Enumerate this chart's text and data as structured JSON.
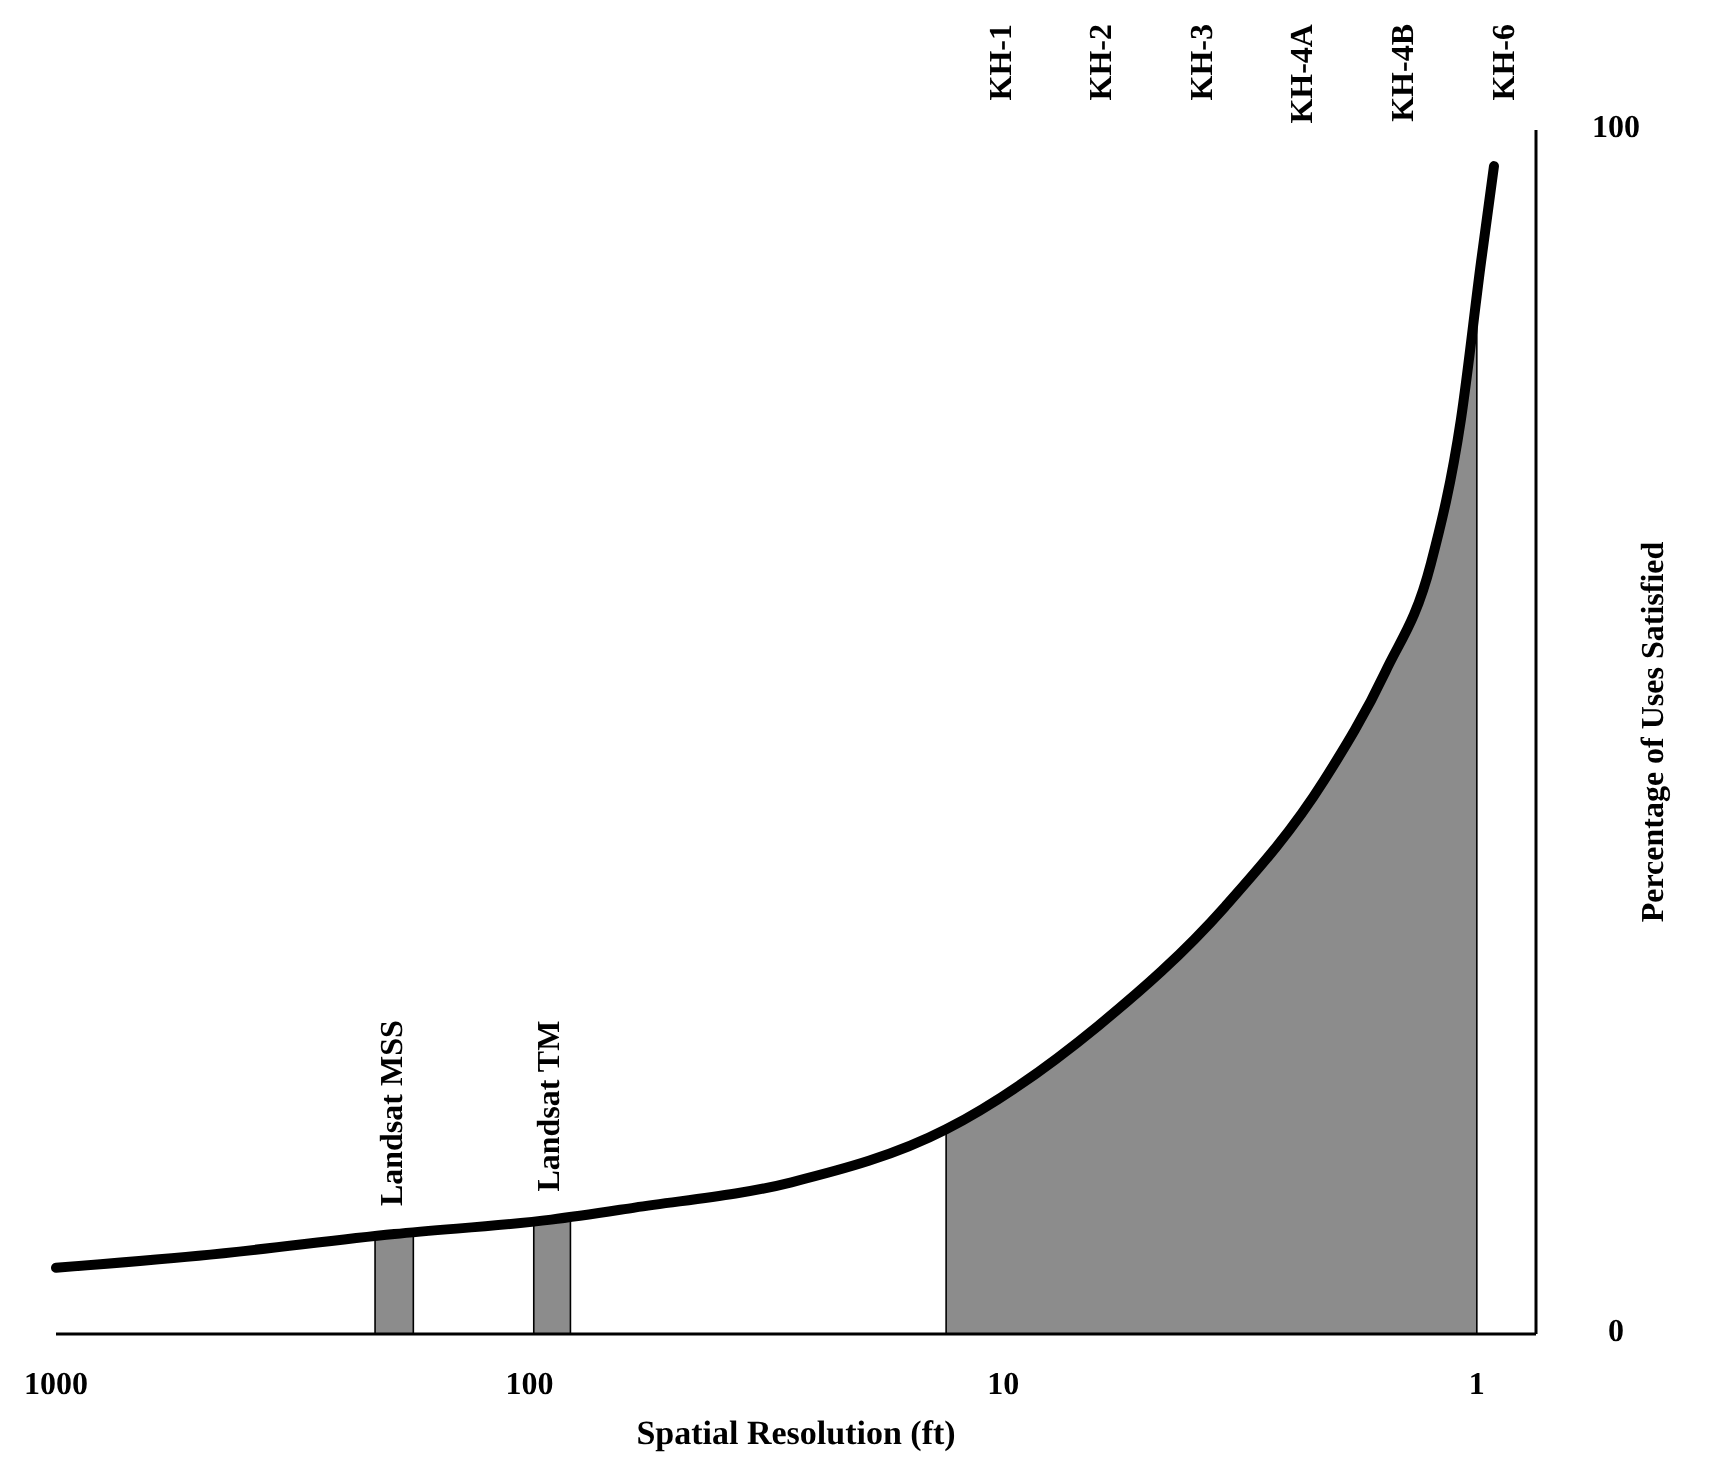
{
  "chart_data": {
    "type": "line",
    "xlabel": "Spatial Resolution (ft)",
    "ylabel": "Percentage of Uses Satisfied",
    "log": "x",
    "xlim": [
      1000,
      0.75
    ],
    "xticks": [
      1000,
      100,
      10,
      1
    ],
    "ylim": [
      0,
      100
    ],
    "yticks": [
      0,
      100
    ],
    "series": [
      {
        "color": "#000000",
        "x": [
          1000,
          500,
          193,
          90,
          60,
          28,
          13.2,
          6.3,
          3.4,
          2.1,
          1.56,
          1.25,
          1.08,
          0.98,
          0.92
        ],
        "values": [
          5.5,
          6.5,
          8.3,
          9.5,
          10.5,
          12.6,
          17,
          25.6,
          35.5,
          46,
          55,
          64,
          76,
          89,
          97
        ]
      }
    ],
    "bands": [
      {
        "axis": "x",
        "from": 212,
        "to": 176,
        "label": "Landsat MSS",
        "color": "#8c8c8c"
      },
      {
        "axis": "x",
        "from": 98,
        "to": 82,
        "label": "Landsat TM",
        "color": "#8c8c8c"
      },
      {
        "axis": "x",
        "from": 13.2,
        "to": 1,
        "color": "#8c8c8c"
      }
    ],
    "annotations": [
      "KH-1",
      "KH-2",
      "KH-3",
      "KH-4A",
      "KH-4B",
      "KH-6"
    ]
  }
}
